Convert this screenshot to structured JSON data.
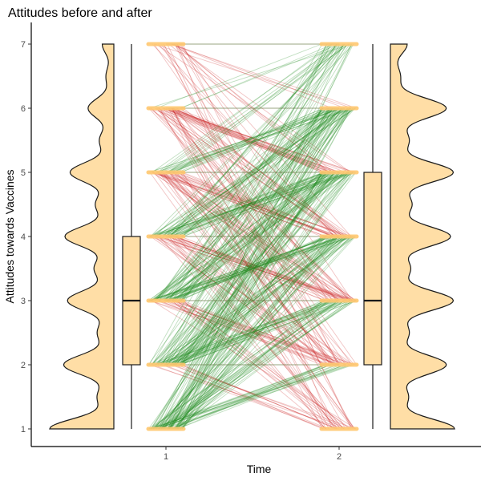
{
  "chart_data": {
    "type": "raincloud-slope",
    "title": "Attitudes before and after",
    "xlabel": "Time",
    "ylabel": "Attitudes towards Vaccines",
    "categories": [
      "1",
      "2"
    ],
    "yticks": [
      "1",
      "2",
      "3",
      "4",
      "5",
      "6",
      "7"
    ],
    "ylim": [
      0.7,
      7.3
    ],
    "boxplots": [
      {
        "category": "1",
        "min": 1,
        "q1": 2,
        "median": 3,
        "q3": 4,
        "max": 7
      },
      {
        "category": "2",
        "min": 1,
        "q1": 2,
        "median": 3,
        "q3": 5,
        "max": 7
      }
    ],
    "transitions_increase": [
      [
        1,
        2,
        18
      ],
      [
        1,
        3,
        22
      ],
      [
        1,
        4,
        22
      ],
      [
        1,
        5,
        18
      ],
      [
        1,
        6,
        14
      ],
      [
        1,
        7,
        6
      ],
      [
        2,
        3,
        20
      ],
      [
        2,
        4,
        22
      ],
      [
        2,
        5,
        20
      ],
      [
        2,
        6,
        16
      ],
      [
        2,
        7,
        6
      ],
      [
        3,
        4,
        24
      ],
      [
        3,
        5,
        22
      ],
      [
        3,
        6,
        18
      ],
      [
        3,
        7,
        8
      ],
      [
        4,
        5,
        24
      ],
      [
        4,
        6,
        20
      ],
      [
        4,
        7,
        8
      ],
      [
        5,
        6,
        16
      ],
      [
        5,
        7,
        8
      ],
      [
        6,
        7,
        4
      ]
    ],
    "transitions_decrease": [
      [
        7,
        6,
        4
      ],
      [
        7,
        5,
        5
      ],
      [
        7,
        4,
        4
      ],
      [
        7,
        3,
        4
      ],
      [
        7,
        2,
        3
      ],
      [
        7,
        1,
        3
      ],
      [
        6,
        5,
        18
      ],
      [
        6,
        4,
        10
      ],
      [
        6,
        3,
        8
      ],
      [
        6,
        2,
        6
      ],
      [
        6,
        1,
        5
      ],
      [
        5,
        4,
        16
      ],
      [
        5,
        3,
        12
      ],
      [
        5,
        2,
        8
      ],
      [
        5,
        1,
        6
      ],
      [
        4,
        3,
        16
      ],
      [
        4,
        2,
        10
      ],
      [
        4,
        1,
        6
      ],
      [
        3,
        2,
        14
      ],
      [
        3,
        1,
        8
      ],
      [
        2,
        1,
        10
      ]
    ],
    "transitions_same": [
      [
        2,
        2,
        3
      ],
      [
        3,
        3,
        3
      ],
      [
        4,
        4,
        3
      ],
      [
        5,
        5,
        3
      ],
      [
        6,
        6,
        2
      ],
      [
        7,
        7,
        2
      ]
    ],
    "colors": {
      "increase": "#228B22",
      "decrease": "#CD2626",
      "same": "#556B2F",
      "fill": "#FFDEA6",
      "points": "#FFC870",
      "outline": "#1a1a1a"
    }
  }
}
